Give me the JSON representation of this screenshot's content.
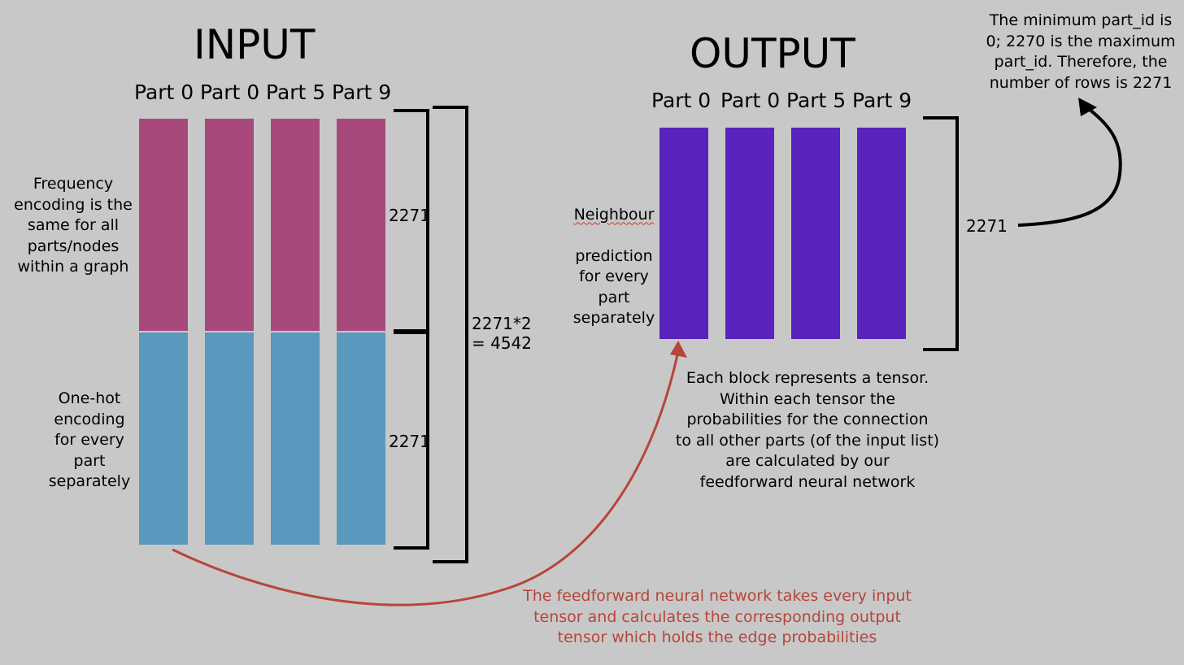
{
  "input": {
    "title": "INPUT",
    "columns": [
      "Part 0",
      "Part 0",
      "Part 5",
      "Part 9"
    ],
    "left_note_top": "Frequency\nencoding is the\nsame for all\nparts/nodes\nwithin a graph",
    "left_note_bottom": "One-hot\nencoding\nfor every\npart\nseparately",
    "dim_top": "2271",
    "dim_bottom": "2271",
    "dim_total": "2271*2\n= 4542",
    "colors": {
      "frequency": "#a74a7b",
      "one_hot": "#5b98bd"
    }
  },
  "output": {
    "title": "OUTPUT",
    "columns": [
      "Part 0",
      "Part 0",
      "Part 5",
      "Part 9"
    ],
    "left_note_word": "Neighbour",
    "left_note_rest": "prediction\nfor every\npart\nseparately",
    "dim": "2271",
    "below_note": "Each block represents a tensor.\nWithin each tensor the\nprobabilities for the connection\nto all other parts (of the input list)\nare calculated by our\nfeedforward neural network",
    "colors": {
      "block": "#5824bb"
    }
  },
  "corner_note": "The minimum part_id is\n0; 2270 is the maximum\npart_id. Therefore, the\nnumber of rows is 2271",
  "bottom_note": "The feedforward neural network takes every input\ntensor and calculates the corresponding output\ntensor which holds the edge probabilities",
  "colors": {
    "background": "#c8c8c8",
    "arrow_red": "#b8453a",
    "arrow_black": "#000000"
  }
}
